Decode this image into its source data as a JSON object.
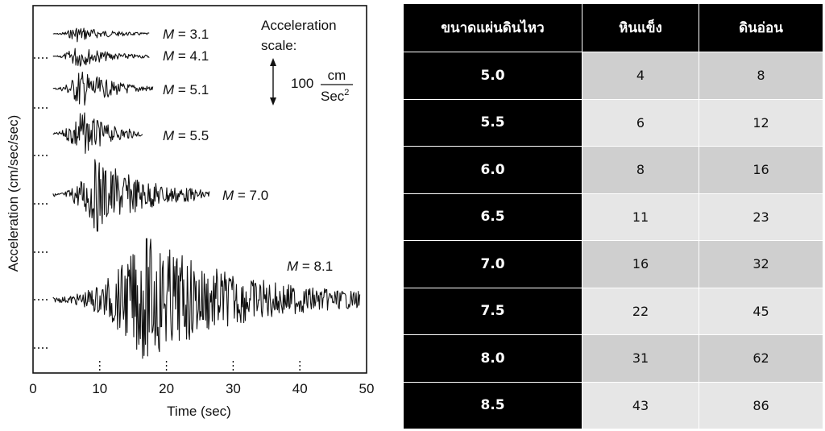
{
  "chart_data": [
    {
      "type": "line",
      "xlabel": "Time (sec)",
      "ylabel": "Acceleration (cm/sec/sec)",
      "xlim": [
        0,
        50
      ],
      "x_ticks": [
        "0",
        "10",
        "20",
        "30",
        "40",
        "50"
      ],
      "scale_label": "Acceleration scale:",
      "scale_value": "100",
      "scale_unit_num": "cm",
      "scale_unit_den": "Sec",
      "scale_unit_exp": "2",
      "series": [
        {
          "name": "M = 3.1",
          "mag_prefix": "M",
          "mag_value": "= 3.1",
          "t_start": 3,
          "t_end": 17.5,
          "peak_t": 6.5,
          "amp": 0.25
        },
        {
          "name": "M = 4.1",
          "mag_prefix": "M",
          "mag_value": "= 4.1",
          "t_start": 3,
          "t_end": 17.5,
          "peak_t": 6.5,
          "amp": 0.3
        },
        {
          "name": "M = 5.1",
          "mag_prefix": "M",
          "mag_value": "= 5.1",
          "t_start": 3,
          "t_end": 18,
          "peak_t": 7,
          "amp": 0.55
        },
        {
          "name": "M = 5.5",
          "mag_prefix": "M",
          "mag_value": "= 5.5",
          "t_start": 3,
          "t_end": 16.5,
          "peak_t": 7,
          "amp": 0.6
        },
        {
          "name": "M = 7.0",
          "mag_prefix": "M",
          "mag_value": "= 7.0",
          "t_start": 3,
          "t_end": 26.5,
          "peak_t": 9.5,
          "amp": 0.9
        },
        {
          "name": "M = 8.1",
          "mag_prefix": "M",
          "mag_value": "= 8.1",
          "t_start": 3,
          "t_end": 49,
          "peak_t": 17,
          "amp": 1.0
        }
      ]
    },
    {
      "type": "table",
      "headers": [
        "ขนาดแผ่นดินไหว",
        "หินแข็ง",
        "ดินอ่อน"
      ],
      "rows": [
        [
          "5.0",
          "4",
          "8"
        ],
        [
          "5.5",
          "6",
          "12"
        ],
        [
          "6.0",
          "8",
          "16"
        ],
        [
          "6.5",
          "11",
          "23"
        ],
        [
          "7.0",
          "16",
          "32"
        ],
        [
          "7.5",
          "22",
          "45"
        ],
        [
          "8.0",
          "31",
          "62"
        ],
        [
          "8.5",
          "43",
          "86"
        ]
      ]
    }
  ]
}
